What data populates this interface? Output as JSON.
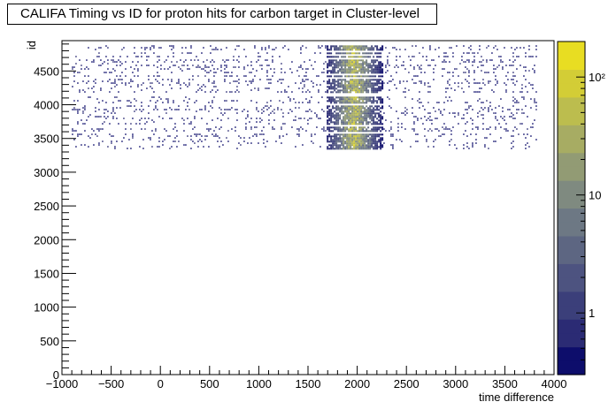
{
  "chart_data": {
    "type": "heatmap",
    "title": "CALIFA Timing vs ID for proton hits for carbon target in Cluster-level",
    "xlabel": "time difference",
    "ylabel": "id",
    "xlim": [
      -1000,
      4000
    ],
    "ylim": [
      0,
      4950
    ],
    "x_ticks": [
      -1000,
      -500,
      0,
      500,
      1000,
      1500,
      2000,
      2500,
      3000,
      3500,
      4000
    ],
    "x_tick_labels": [
      "−1000",
      "−500",
      "0",
      "500",
      "1000",
      "1500",
      "2000",
      "2500",
      "3000",
      "3500",
      "4000"
    ],
    "y_ticks": [
      0,
      500,
      1000,
      1500,
      2000,
      2500,
      3000,
      3500,
      4000,
      4500
    ],
    "y_tick_labels": [
      "0",
      "500",
      "1000",
      "1500",
      "2000",
      "2500",
      "3000",
      "3500",
      "4000",
      "4500"
    ],
    "colorbar": {
      "scale": "log",
      "range": [
        0.3,
        200
      ],
      "ticks": [
        1,
        10,
        100
      ],
      "tick_labels": [
        "1",
        "10",
        "10²"
      ],
      "palette": [
        "#0d0d6b",
        "#2b2b74",
        "#3b3f7a",
        "#4d5380",
        "#5d6682",
        "#6d7884",
        "#7f8a80",
        "#929b74",
        "#a7ac63",
        "#bcbd4e",
        "#d3cd36",
        "#e8dd22"
      ]
    },
    "regions": [
      {
        "name": "background",
        "x_range": [
          -900,
          3820
        ],
        "y_range": [
          3360,
          4880
        ],
        "density": "sparse",
        "count_level": 1
      },
      {
        "name": "prompt-peak",
        "x_range": [
          1680,
          2260
        ],
        "y_range": [
          3360,
          4880
        ],
        "density": "dense",
        "peak_x": 1960,
        "count_level": 150
      }
    ],
    "grid": false
  }
}
